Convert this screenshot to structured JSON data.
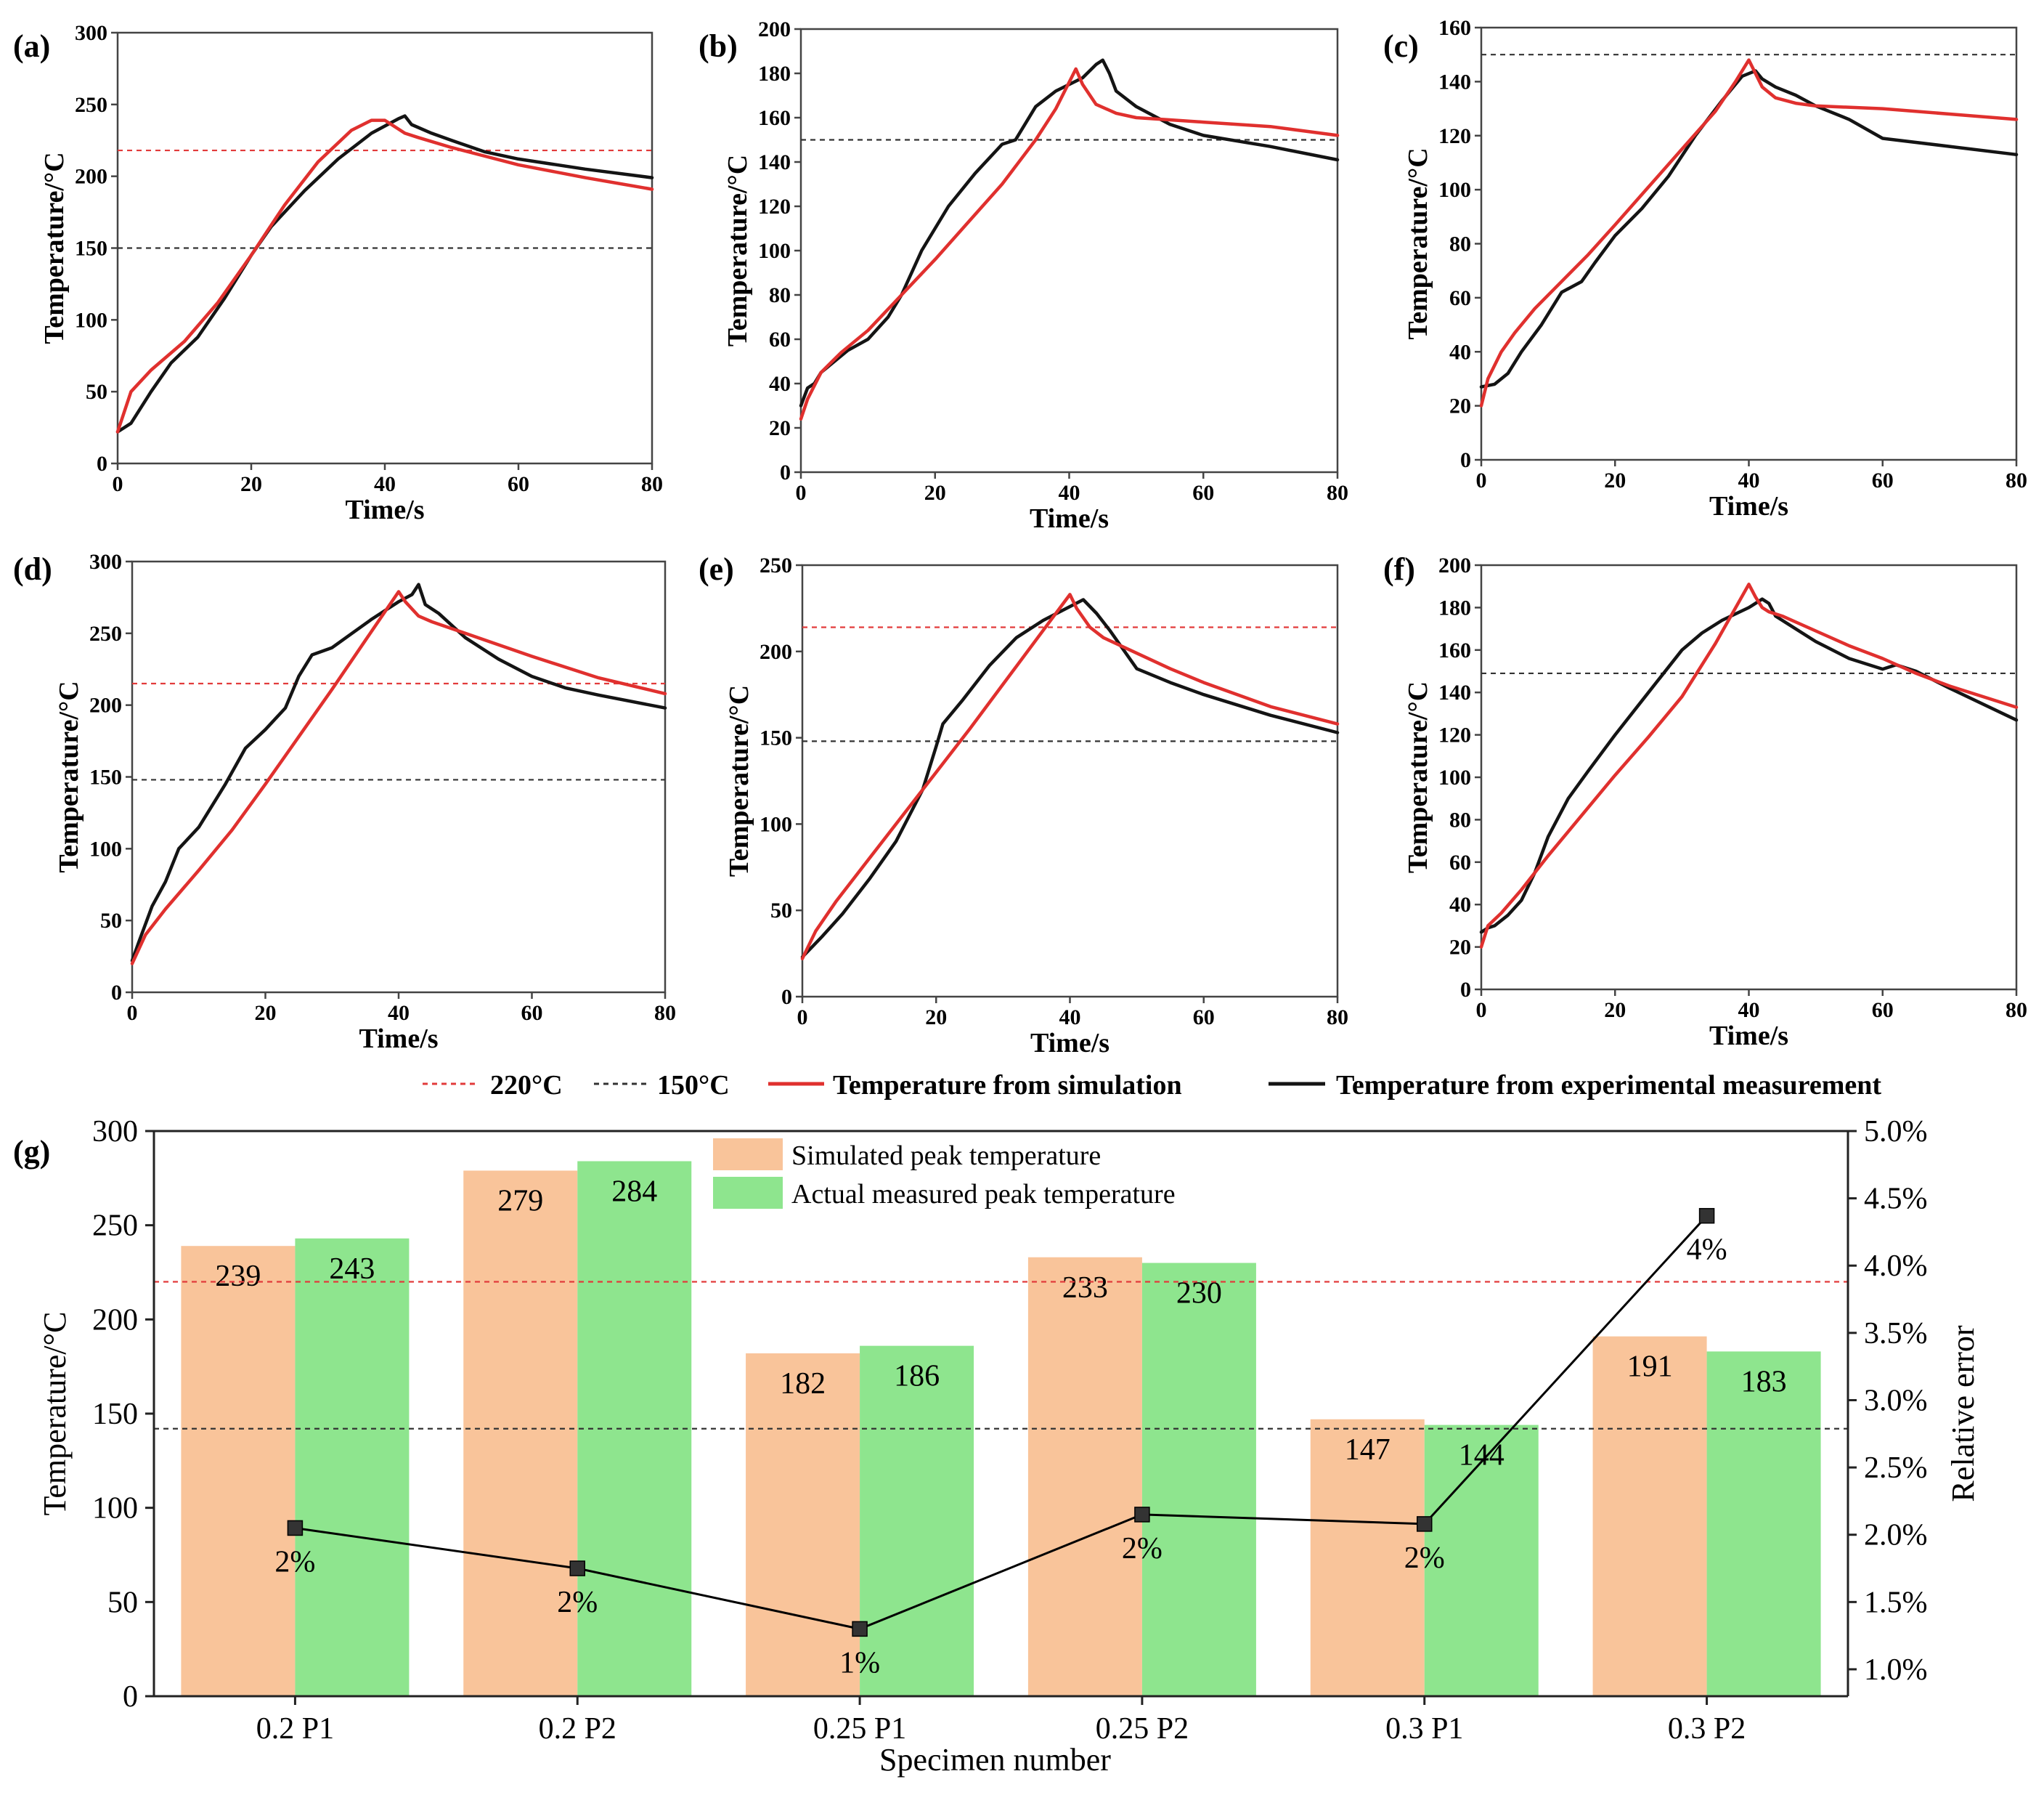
{
  "figure": {
    "colors": {
      "sim": "#e0302e",
      "exp": "#141414",
      "ref220": "#e23b3b",
      "ref150": "#333333",
      "bar_sim": "#f9c49a",
      "bar_act": "#8ee58e",
      "err_line": "#000000"
    },
    "top_legend": {
      "ref220_label": "220°C",
      "ref150_label": "150°C",
      "sim_label": "Temperature from simulation",
      "exp_label": "Temperature from experimental measurement"
    }
  },
  "chart_data": [
    {
      "panel": "(a)",
      "type": "line",
      "xlabel": "Time/s",
      "ylabel": "Temperature/°C",
      "xlim": [
        0,
        80
      ],
      "ylim": [
        0,
        300
      ],
      "xticks": [
        0,
        20,
        40,
        60,
        80
      ],
      "yticks": [
        0,
        50,
        100,
        150,
        200,
        250,
        300
      ],
      "ref_lines": [
        {
          "name": "220°C",
          "y": 218
        },
        {
          "name": "150°C",
          "y": 150
        }
      ],
      "series": [
        {
          "name": "Temperature from simulation",
          "x": [
            0,
            2,
            5,
            10,
            15,
            20,
            25,
            30,
            35,
            38,
            40,
            41,
            43,
            45,
            50,
            55,
            60,
            70,
            80
          ],
          "y": [
            22,
            50,
            65,
            85,
            112,
            145,
            180,
            210,
            232,
            239,
            239,
            236,
            230,
            227,
            220,
            214,
            208,
            199,
            191
          ]
        },
        {
          "name": "Temperature from experimental measurement",
          "x": [
            0,
            2,
            5,
            8,
            12,
            16,
            20,
            23,
            28,
            33,
            38,
            42,
            43,
            44,
            47,
            50,
            55,
            60,
            70,
            80
          ],
          "y": [
            22,
            28,
            50,
            70,
            88,
            115,
            145,
            165,
            190,
            212,
            230,
            240,
            242,
            236,
            230,
            225,
            217,
            212,
            205,
            199
          ]
        }
      ]
    },
    {
      "panel": "(b)",
      "type": "line",
      "xlabel": "Time/s",
      "ylabel": "Temperature/°C",
      "xlim": [
        0,
        80
      ],
      "ylim": [
        0,
        200
      ],
      "xticks": [
        0,
        20,
        40,
        60,
        80
      ],
      "yticks": [
        0,
        20,
        40,
        60,
        80,
        100,
        120,
        140,
        160,
        180,
        200
      ],
      "ref_lines": [
        {
          "name": "150°C",
          "y": 150
        }
      ],
      "series": [
        {
          "name": "Temperature from simulation",
          "x": [
            0,
            1,
            3,
            6,
            10,
            15,
            20,
            25,
            30,
            35,
            38,
            41,
            42,
            44,
            47,
            50,
            55,
            60,
            70,
            80
          ],
          "y": [
            24,
            33,
            45,
            54,
            64,
            80,
            96,
            113,
            130,
            150,
            164,
            182,
            175,
            166,
            162,
            160,
            159,
            158,
            156,
            152
          ]
        },
        {
          "name": "Temperature from experimental measurement",
          "x": [
            0,
            1,
            2,
            3,
            5,
            7,
            10,
            13,
            15,
            18,
            22,
            26,
            30,
            32,
            35,
            38,
            42,
            44,
            45,
            46,
            47,
            50,
            55,
            60,
            70,
            80
          ],
          "y": [
            30,
            38,
            40,
            45,
            50,
            55,
            60,
            70,
            80,
            100,
            120,
            135,
            148,
            150,
            165,
            172,
            178,
            184,
            186,
            180,
            172,
            165,
            157,
            152,
            147,
            141
          ]
        }
      ]
    },
    {
      "panel": "(c)",
      "type": "line",
      "xlabel": "Time/s",
      "ylabel": "Temperature/°C",
      "xlim": [
        0,
        80
      ],
      "ylim": [
        0,
        160
      ],
      "xticks": [
        0,
        20,
        40,
        60,
        80
      ],
      "yticks": [
        0,
        20,
        40,
        60,
        80,
        100,
        120,
        140,
        160
      ],
      "ref_lines": [
        {
          "name": "150°C",
          "y": 150
        }
      ],
      "series": [
        {
          "name": "Temperature from simulation",
          "x": [
            0,
            1,
            3,
            5,
            8,
            12,
            16,
            20,
            25,
            30,
            35,
            38,
            40,
            41,
            42,
            44,
            47,
            50,
            60,
            70,
            80
          ],
          "y": [
            20,
            30,
            40,
            47,
            56,
            66,
            76,
            87,
            101,
            115,
            129,
            140,
            148,
            143,
            138,
            134,
            132,
            131,
            130,
            128,
            126
          ]
        },
        {
          "name": "Temperature from experimental measurement",
          "x": [
            0,
            2,
            4,
            6,
            9,
            12,
            15,
            17,
            20,
            24,
            28,
            32,
            36,
            39,
            41,
            42,
            44,
            47,
            50,
            55,
            60,
            70,
            80
          ],
          "y": [
            27,
            28,
            32,
            40,
            50,
            62,
            66,
            73,
            83,
            93,
            105,
            120,
            133,
            142,
            144,
            141,
            138,
            135,
            131,
            126,
            119,
            116,
            113
          ]
        }
      ]
    },
    {
      "panel": "(d)",
      "type": "line",
      "xlabel": "Time/s",
      "ylabel": "Temperature/°C",
      "xlim": [
        0,
        80
      ],
      "ylim": [
        0,
        300
      ],
      "xticks": [
        0,
        20,
        40,
        60,
        80
      ],
      "yticks": [
        0,
        50,
        100,
        150,
        200,
        250,
        300
      ],
      "ref_lines": [
        {
          "name": "220°C",
          "y": 215
        },
        {
          "name": "150°C",
          "y": 148
        }
      ],
      "series": [
        {
          "name": "Temperature from simulation",
          "x": [
            0,
            2,
            5,
            10,
            15,
            20,
            25,
            30,
            35,
            40,
            41,
            43,
            45,
            50,
            55,
            60,
            70,
            80
          ],
          "y": [
            20,
            40,
            58,
            85,
            113,
            145,
            178,
            211,
            245,
            279,
            272,
            262,
            258,
            250,
            242,
            234,
            219,
            208
          ]
        },
        {
          "name": "Temperature from experimental measurement",
          "x": [
            0,
            1,
            3,
            5,
            7,
            10,
            14,
            17,
            20,
            23,
            25,
            27,
            30,
            33,
            36,
            40,
            42,
            43,
            44,
            46,
            50,
            55,
            60,
            65,
            70,
            80
          ],
          "y": [
            22,
            35,
            60,
            77,
            100,
            115,
            145,
            170,
            183,
            198,
            220,
            235,
            240,
            250,
            260,
            272,
            277,
            284,
            270,
            264,
            247,
            232,
            220,
            212,
            207,
            198
          ]
        }
      ]
    },
    {
      "panel": "(e)",
      "type": "line",
      "xlabel": "Time/s",
      "ylabel": "Temperature/°C",
      "xlim": [
        0,
        80
      ],
      "ylim": [
        0,
        250
      ],
      "xticks": [
        0,
        20,
        40,
        60,
        80
      ],
      "yticks": [
        0,
        50,
        100,
        150,
        200,
        250
      ],
      "ref_lines": [
        {
          "name": "220°C",
          "y": 214
        },
        {
          "name": "150°C",
          "y": 148
        }
      ],
      "series": [
        {
          "name": "Temperature from simulation",
          "x": [
            0,
            2,
            5,
            10,
            15,
            20,
            25,
            30,
            35,
            40,
            41,
            43,
            45,
            50,
            55,
            60,
            70,
            80
          ],
          "y": [
            22,
            38,
            55,
            80,
            105,
            130,
            155,
            181,
            207,
            233,
            225,
            214,
            208,
            199,
            190,
            182,
            168,
            158
          ]
        },
        {
          "name": "Temperature from experimental measurement",
          "x": [
            0,
            3,
            6,
            10,
            14,
            18,
            20,
            21,
            24,
            28,
            32,
            36,
            40,
            42,
            44,
            46,
            50,
            55,
            60,
            70,
            80
          ],
          "y": [
            23,
            35,
            48,
            68,
            90,
            120,
            145,
            158,
            172,
            192,
            208,
            218,
            226,
            230,
            222,
            212,
            190,
            182,
            175,
            163,
            153
          ]
        }
      ]
    },
    {
      "panel": "(f)",
      "type": "line",
      "xlabel": "Time/s",
      "ylabel": "Temperature/°C",
      "xlim": [
        0,
        80
      ],
      "ylim": [
        0,
        200
      ],
      "xticks": [
        0,
        20,
        40,
        60,
        80
      ],
      "yticks": [
        0,
        20,
        40,
        60,
        80,
        100,
        120,
        140,
        160,
        180,
        200
      ],
      "ref_lines": [
        {
          "name": "150°C",
          "y": 149
        }
      ],
      "series": [
        {
          "name": "Temperature from simulation",
          "x": [
            0,
            1,
            3,
            6,
            10,
            15,
            20,
            25,
            30,
            35,
            40,
            41,
            42,
            43,
            45,
            50,
            55,
            60,
            65,
            70,
            80
          ],
          "y": [
            20,
            30,
            36,
            47,
            63,
            82,
            101,
            119,
            138,
            163,
            191,
            185,
            180,
            178,
            176,
            169,
            162,
            156,
            149,
            143,
            133
          ]
        },
        {
          "name": "Temperature from experimental measurement",
          "x": [
            0,
            1,
            2,
            4,
            6,
            8,
            10,
            13,
            16,
            20,
            25,
            30,
            33,
            36,
            40,
            42,
            43,
            44,
            46,
            50,
            55,
            60,
            62,
            65,
            70,
            80
          ],
          "y": [
            27,
            29,
            30,
            35,
            42,
            55,
            72,
            90,
            103,
            120,
            140,
            160,
            168,
            174,
            180,
            184,
            182,
            176,
            172,
            164,
            156,
            151,
            153,
            150,
            142,
            127
          ]
        }
      ]
    },
    {
      "panel": "(g)",
      "type": "bar",
      "xlabel": "Specimen number",
      "ylabel": "Temperature/°C",
      "ylabel_right": "Relative error",
      "categories": [
        "0.2 P1",
        "0.2 P2",
        "0.25 P1",
        "0.25 P2",
        "0.3 P1",
        "0.3 P2"
      ],
      "ylim": [
        0,
        300
      ],
      "yticks": [
        0,
        50,
        100,
        150,
        200,
        250,
        300
      ],
      "ylim_right": [
        0.8,
        5.0
      ],
      "yticks_right": [
        1.0,
        1.5,
        2.0,
        2.5,
        3.0,
        3.5,
        4.0,
        4.5,
        5.0
      ],
      "yticklabels_right": [
        "1.0%",
        "1.5%",
        "2.0%",
        "2.5%",
        "3.0%",
        "3.5%",
        "4.0%",
        "4.5%",
        "5.0%"
      ],
      "ref_lines": [
        {
          "name": "220°C",
          "y": 220
        },
        {
          "name": "150°C",
          "y": 142
        }
      ],
      "series": [
        {
          "name": "Simulated peak temperature",
          "values": [
            239,
            279,
            182,
            233,
            147,
            191
          ],
          "labels": [
            "239",
            "279",
            "182",
            "233",
            "147",
            "191"
          ]
        },
        {
          "name": "Actual measured peak temperature",
          "values": [
            243,
            284,
            186,
            230,
            144,
            183
          ],
          "labels": [
            "243",
            "284",
            "186",
            "230",
            "144",
            "183"
          ]
        }
      ],
      "error_series": {
        "name": "Relative error",
        "values": [
          2.05,
          1.75,
          1.3,
          2.15,
          2.08,
          4.37
        ],
        "labels": [
          "2%",
          "2%",
          "1%",
          "2%",
          "2%",
          "4%"
        ]
      }
    }
  ]
}
